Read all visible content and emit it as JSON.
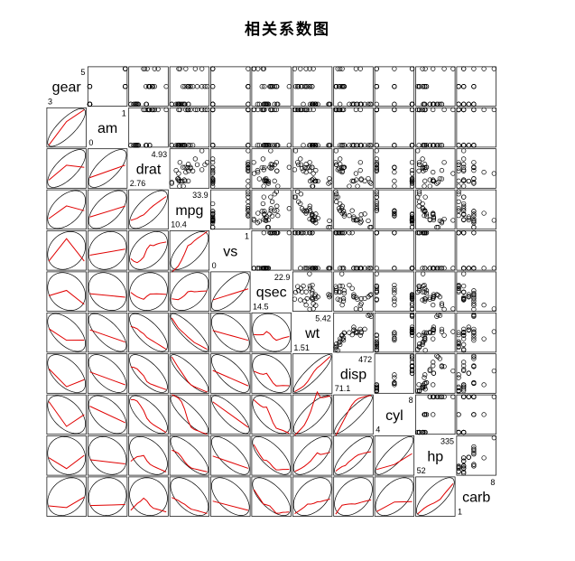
{
  "title": "相关系数图",
  "chart_data": {
    "type": "scatter-matrix",
    "title": "相关系数图",
    "lower_panel": "correlation-ellipse-with-loess",
    "upper_panel": "scatter",
    "loess_color": "#e00000",
    "point_style": "open-circle",
    "variables": [
      {
        "name": "gear",
        "min": "3",
        "max": "5"
      },
      {
        "name": "am",
        "min": "0",
        "max": "1"
      },
      {
        "name": "drat",
        "min": "2.76",
        "max": "4.93"
      },
      {
        "name": "mpg",
        "min": "10.4",
        "max": "33.9"
      },
      {
        "name": "vs",
        "min": "0",
        "max": "1"
      },
      {
        "name": "qsec",
        "min": "14.5",
        "max": "22.9"
      },
      {
        "name": "wt",
        "min": "1.51",
        "max": "5.42"
      },
      {
        "name": "disp",
        "min": "71.1",
        "max": "472"
      },
      {
        "name": "cyl",
        "min": "4",
        "max": "8"
      },
      {
        "name": "hp",
        "min": "52",
        "max": "335"
      },
      {
        "name": "carb",
        "min": "1",
        "max": "8"
      }
    ],
    "observations": {
      "mpg": [
        21,
        21,
        22.8,
        21.4,
        18.7,
        18.1,
        14.3,
        24.4,
        22.8,
        19.2,
        17.8,
        16.4,
        17.3,
        15.2,
        10.4,
        10.4,
        14.7,
        32.4,
        30.4,
        33.9,
        21.5,
        15.5,
        15.2,
        13.3,
        19.2,
        27.3,
        26,
        30.4,
        15.8,
        19.7,
        15,
        21.4
      ],
      "cyl": [
        6,
        6,
        4,
        6,
        8,
        6,
        8,
        4,
        4,
        6,
        6,
        8,
        8,
        8,
        8,
        8,
        8,
        4,
        4,
        4,
        4,
        8,
        8,
        8,
        8,
        4,
        4,
        4,
        8,
        6,
        8,
        4
      ],
      "disp": [
        160,
        160,
        108,
        258,
        360,
        225,
        360,
        146.7,
        140.8,
        167.6,
        167.6,
        275.8,
        275.8,
        275.8,
        472,
        460,
        440,
        78.7,
        75.7,
        71.1,
        120.1,
        318,
        304,
        350,
        400,
        79,
        120.3,
        95.1,
        351,
        145,
        301,
        121
      ],
      "hp": [
        110,
        110,
        93,
        110,
        175,
        105,
        245,
        62,
        95,
        123,
        123,
        180,
        180,
        180,
        205,
        215,
        230,
        66,
        52,
        65,
        97,
        150,
        150,
        245,
        175,
        66,
        91,
        113,
        264,
        175,
        335,
        109
      ],
      "drat": [
        3.9,
        3.9,
        3.85,
        3.08,
        3.15,
        2.76,
        3.21,
        3.69,
        3.92,
        3.92,
        3.92,
        3.07,
        3.07,
        3.07,
        2.93,
        3,
        3.23,
        4.08,
        4.93,
        4.22,
        3.7,
        2.76,
        3.15,
        3.73,
        3.08,
        4.08,
        4.43,
        3.77,
        4.22,
        3.62,
        3.54,
        4.11
      ],
      "wt": [
        2.62,
        2.875,
        2.32,
        3.215,
        3.44,
        3.46,
        3.57,
        3.19,
        3.15,
        3.44,
        3.44,
        4.07,
        3.73,
        3.78,
        5.25,
        5.424,
        5.345,
        2.2,
        1.615,
        1.835,
        2.465,
        3.52,
        3.435,
        3.84,
        3.845,
        1.935,
        2.14,
        1.513,
        3.17,
        2.77,
        3.57,
        2.78
      ],
      "qsec": [
        16.46,
        17.02,
        18.61,
        19.44,
        17.02,
        20.22,
        15.84,
        20,
        22.9,
        18.3,
        18.9,
        17.4,
        17.6,
        18,
        17.98,
        17.82,
        17.42,
        19.47,
        18.52,
        19.9,
        20.01,
        16.87,
        17.3,
        15.41,
        17.05,
        18.9,
        16.7,
        16.9,
        14.5,
        15.5,
        14.6,
        18.6
      ],
      "vs": [
        0,
        0,
        1,
        1,
        0,
        1,
        0,
        1,
        1,
        1,
        1,
        0,
        0,
        0,
        0,
        0,
        0,
        1,
        1,
        1,
        1,
        0,
        0,
        0,
        0,
        1,
        0,
        1,
        0,
        0,
        0,
        1
      ],
      "am": [
        1,
        1,
        1,
        0,
        0,
        0,
        0,
        0,
        0,
        0,
        0,
        0,
        0,
        0,
        0,
        0,
        0,
        1,
        1,
        1,
        0,
        0,
        0,
        0,
        0,
        1,
        1,
        1,
        1,
        1,
        1,
        1
      ],
      "gear": [
        4,
        4,
        4,
        3,
        3,
        3,
        3,
        4,
        4,
        4,
        4,
        3,
        3,
        3,
        3,
        3,
        3,
        4,
        4,
        4,
        3,
        3,
        3,
        3,
        3,
        4,
        5,
        5,
        5,
        5,
        5,
        4
      ],
      "carb": [
        4,
        4,
        1,
        1,
        2,
        1,
        4,
        2,
        2,
        4,
        4,
        3,
        3,
        3,
        4,
        4,
        4,
        1,
        2,
        1,
        1,
        2,
        2,
        4,
        2,
        1,
        2,
        2,
        4,
        6,
        8,
        2
      ]
    }
  }
}
